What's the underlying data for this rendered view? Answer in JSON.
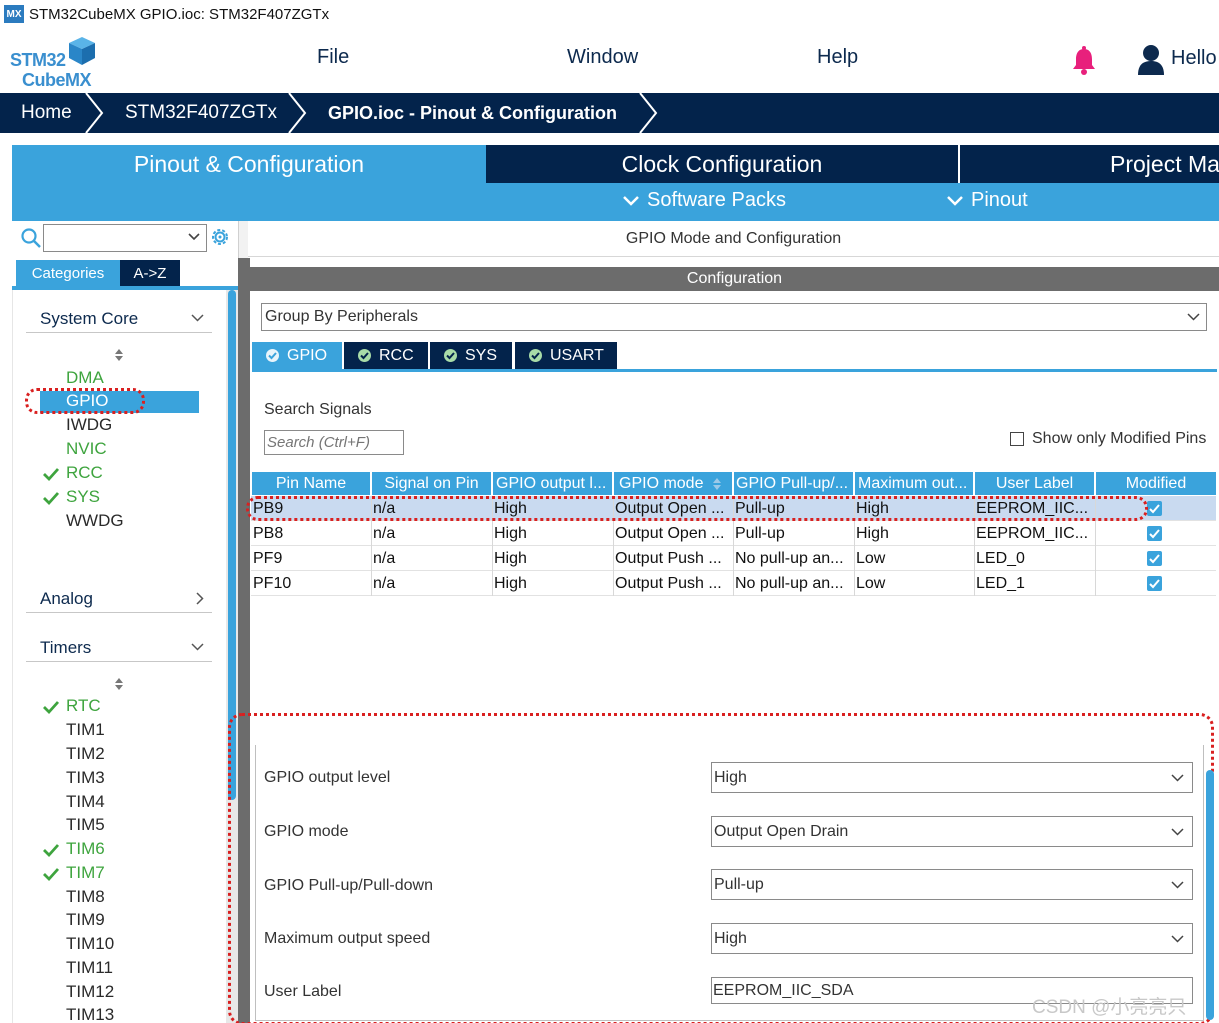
{
  "window": {
    "app_icon": "MX",
    "title": "STM32CubeMX GPIO.ioc: STM32F407ZGTx"
  },
  "logo": {
    "line1": "STM32",
    "line2": "CubeMX"
  },
  "menu": {
    "file": "File",
    "window": "Window",
    "help": "Help",
    "user": "Hello"
  },
  "breadcrumb": {
    "home": "Home",
    "device": "STM32F407ZGTx",
    "current": "GPIO.ioc - Pinout & Configuration"
  },
  "main_tabs": {
    "pinout": "Pinout & Configuration",
    "clock": "Clock Configuration",
    "project": "Project Ma"
  },
  "sub_menu": {
    "software_packs": "Software Packs",
    "pinout": "Pinout"
  },
  "left": {
    "tab_categories": "Categories",
    "tab_az": "A->Z",
    "system_core": {
      "label": "System Core",
      "items": [
        {
          "label": "DMA",
          "checked": false
        },
        {
          "label": "GPIO",
          "checked": false
        },
        {
          "label": "IWDG",
          "checked": false
        },
        {
          "label": "NVIC",
          "checked": false
        },
        {
          "label": "RCC",
          "checked": true
        },
        {
          "label": "SYS",
          "checked": true
        },
        {
          "label": "WWDG",
          "checked": false
        }
      ]
    },
    "analog": {
      "label": "Analog"
    },
    "timers": {
      "label": "Timers",
      "items": [
        {
          "label": "RTC",
          "checked": true
        },
        {
          "label": "TIM1",
          "checked": false
        },
        {
          "label": "TIM2",
          "checked": false
        },
        {
          "label": "TIM3",
          "checked": false
        },
        {
          "label": "TIM4",
          "checked": false
        },
        {
          "label": "TIM5",
          "checked": false
        },
        {
          "label": "TIM6",
          "checked": true
        },
        {
          "label": "TIM7",
          "checked": true
        },
        {
          "label": "TIM8",
          "checked": false
        },
        {
          "label": "TIM9",
          "checked": false
        },
        {
          "label": "TIM10",
          "checked": false
        },
        {
          "label": "TIM11",
          "checked": false
        },
        {
          "label": "TIM12",
          "checked": false
        },
        {
          "label": "TIM13",
          "checked": false
        }
      ]
    }
  },
  "panel": {
    "title": "GPIO Mode and Configuration",
    "config_header": "Configuration",
    "group_by": "Group By Peripherals",
    "tabs": [
      "GPIO",
      "RCC",
      "SYS",
      "USART"
    ],
    "search_label": "Search Signals",
    "search_placeholder": "Search (Ctrl+F)",
    "show_modified": "Show only Modified Pins"
  },
  "table": {
    "headers": [
      "Pin Name",
      "Signal on Pin",
      "GPIO output l...",
      "GPIO mode",
      "GPIO Pull-up/...",
      "Maximum out...",
      "User Label",
      "Modified"
    ],
    "rows": [
      [
        "PB9",
        "n/a",
        "High",
        "Output Open ...",
        "Pull-up",
        "High",
        "EEPROM_IIC...",
        true
      ],
      [
        "PB8",
        "n/a",
        "High",
        "Output Open ...",
        "Pull-up",
        "High",
        "EEPROM_IIC...",
        true
      ],
      [
        "PF9",
        "n/a",
        "High",
        "Output Push ...",
        "No pull-up an...",
        "Low",
        "LED_0",
        true
      ],
      [
        "PF10",
        "n/a",
        "High",
        "Output Push ...",
        "No pull-up an...",
        "Low",
        "LED_1",
        true
      ]
    ]
  },
  "detail": {
    "output_level": {
      "label": "GPIO output level",
      "value": "High"
    },
    "mode": {
      "label": "GPIO mode",
      "value": "Output Open Drain"
    },
    "pull": {
      "label": "GPIO Pull-up/Pull-down",
      "value": "Pull-up"
    },
    "speed": {
      "label": "Maximum output speed",
      "value": "High"
    },
    "user_label": {
      "label": "User Label",
      "value": "EEPROM_IIC_SDA"
    }
  },
  "watermark": "CSDN @小亮亮只",
  "colors": {
    "navy": "#03234b",
    "accent": "#3aa3dc",
    "green": "#3ea43e",
    "annotation": "#d92020"
  }
}
